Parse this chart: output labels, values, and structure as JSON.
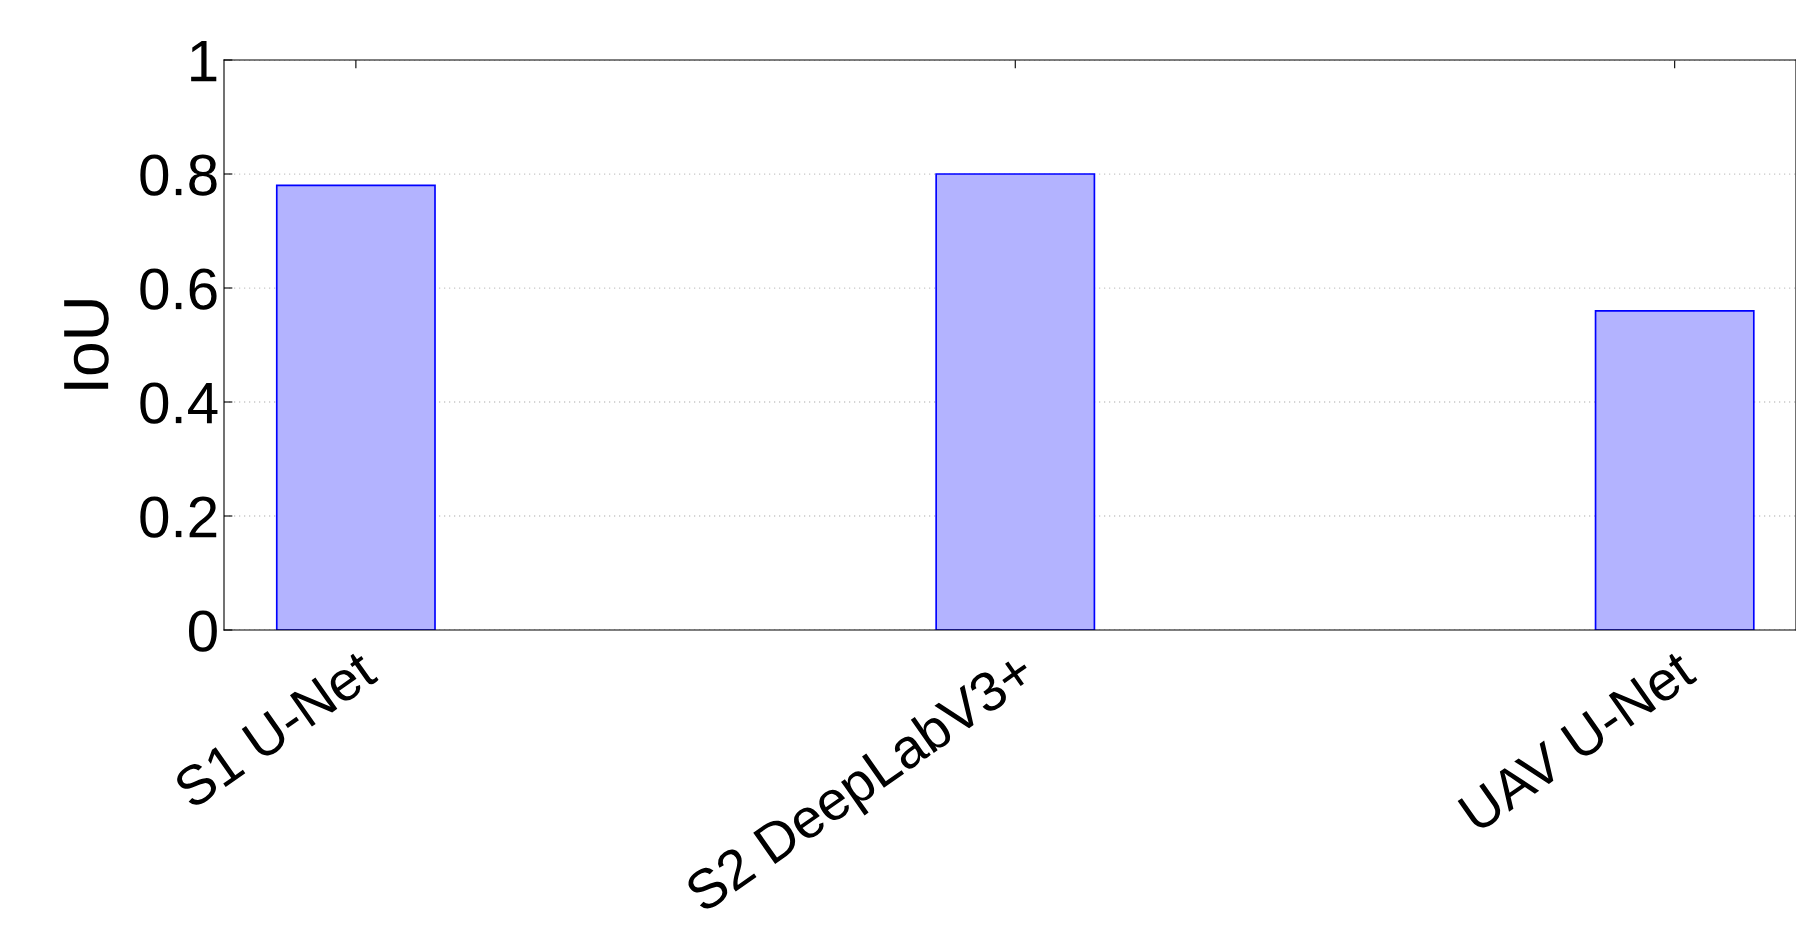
{
  "chart_data": {
    "type": "bar",
    "ylabel": "IoU",
    "categories": [
      "S1 U-Net",
      "S2 DeepLabV3+",
      "UAV U-Net"
    ],
    "values": [
      0.78,
      0.8,
      0.56
    ],
    "color": "#b3b3ff",
    "ylim": [
      0,
      1
    ],
    "yticks": [
      0,
      0.2,
      0.4,
      0.6,
      0.8,
      1
    ],
    "grid": "y"
  }
}
